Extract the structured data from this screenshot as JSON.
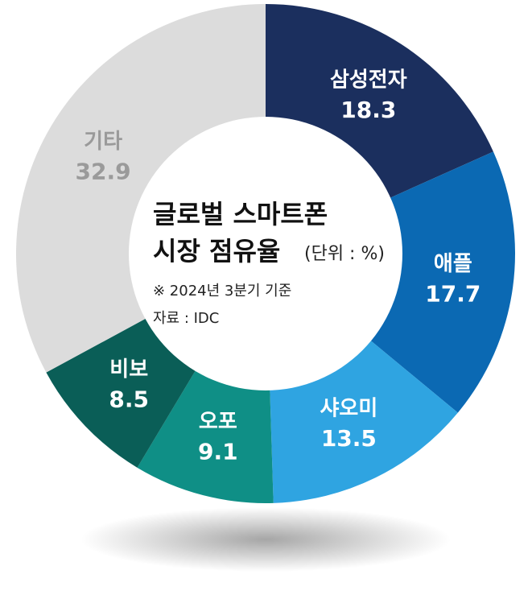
{
  "chart_data": {
    "type": "donut",
    "title": [
      "글로벌 스마트폰",
      "시장 점유율"
    ],
    "unit": "(단위 : %)",
    "notes": [
      "※ 2024년 3분기 기준",
      "자료 : IDC"
    ],
    "categories": [
      "삼성전자",
      "애플",
      "샤오미",
      "오포",
      "비보",
      "기타"
    ],
    "values": [
      18.3,
      17.7,
      13.5,
      9.1,
      8.5,
      32.9
    ],
    "colors": [
      "#1b2f5e",
      "#0b69b3",
      "#2fa4e1",
      "#0f8f86",
      "#0a5e57",
      "#dcdcdc"
    ],
    "label_colors": [
      "#ffffff",
      "#ffffff",
      "#ffffff",
      "#ffffff",
      "#ffffff",
      "#9a9a9a"
    ]
  }
}
